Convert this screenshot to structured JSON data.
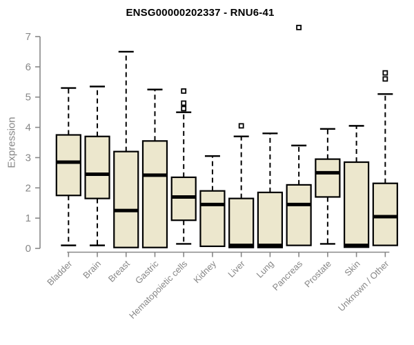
{
  "page": {
    "background": "#ffffff"
  },
  "chart_data": {
    "type": "box",
    "title": "ENSG00000202337 - RNU6-41",
    "ylabel": "Expression",
    "xlabel": "",
    "ylim": [
      0,
      7
    ],
    "yticks": [
      0,
      1,
      2,
      3,
      4,
      5,
      6,
      7
    ],
    "grid": false,
    "legend": "none",
    "colors": {
      "box_fill": "#ECE7CD",
      "box_border": "#000000",
      "median": "#000000",
      "whisker": "#000000",
      "axis": "#878787",
      "tick_label": "#878787",
      "title": "#000000"
    },
    "categories": [
      "Bladder",
      "Brain",
      "Breast",
      "Gastric",
      "Hematopoietic cells",
      "Kidney",
      "Liver",
      "Lung",
      "Pancreas",
      "Prostate",
      "Skin",
      "Unknown / Other"
    ],
    "boxes": [
      {
        "category": "Bladder",
        "whisker_low": 0.1,
        "q1": 1.75,
        "median": 2.85,
        "q3": 3.75,
        "whisker_high": 5.3,
        "outliers": []
      },
      {
        "category": "Brain",
        "whisker_low": 0.1,
        "q1": 1.65,
        "median": 2.45,
        "q3": 3.7,
        "whisker_high": 5.35,
        "outliers": []
      },
      {
        "category": "Breast",
        "whisker_low": 0.03,
        "q1": 0.03,
        "median": 1.25,
        "q3": 3.2,
        "whisker_high": 6.5,
        "outliers": []
      },
      {
        "category": "Gastric",
        "whisker_low": 0.03,
        "q1": 0.03,
        "median": 2.42,
        "q3": 3.55,
        "whisker_high": 5.25,
        "outliers": []
      },
      {
        "category": "Hematopoietic cells",
        "whisker_low": 0.15,
        "q1": 0.93,
        "median": 1.7,
        "q3": 2.35,
        "whisker_high": 4.5,
        "outliers": [
          4.62,
          4.8,
          5.2
        ]
      },
      {
        "category": "Kidney",
        "whisker_low": 0.07,
        "q1": 0.07,
        "median": 1.45,
        "q3": 1.9,
        "whisker_high": 3.05,
        "outliers": []
      },
      {
        "category": "Liver",
        "whisker_low": 0.03,
        "q1": 0.03,
        "median": 0.1,
        "q3": 1.65,
        "whisker_high": 3.7,
        "outliers": [
          4.05
        ]
      },
      {
        "category": "Lung",
        "whisker_low": 0.03,
        "q1": 0.03,
        "median": 0.1,
        "q3": 1.85,
        "whisker_high": 3.8,
        "outliers": []
      },
      {
        "category": "Pancreas",
        "whisker_low": 0.1,
        "q1": 0.1,
        "median": 1.45,
        "q3": 2.1,
        "whisker_high": 3.4,
        "outliers": [
          7.3
        ]
      },
      {
        "category": "Prostate",
        "whisker_low": 0.15,
        "q1": 1.7,
        "median": 2.5,
        "q3": 2.95,
        "whisker_high": 3.95,
        "outliers": []
      },
      {
        "category": "Skin",
        "whisker_low": 0.04,
        "q1": 0.04,
        "median": 0.1,
        "q3": 2.85,
        "whisker_high": 4.05,
        "outliers": []
      },
      {
        "category": "Unknown / Other",
        "whisker_low": 0.1,
        "q1": 0.1,
        "median": 1.05,
        "q3": 2.15,
        "whisker_high": 5.1,
        "outliers": [
          5.6,
          5.8
        ]
      }
    ]
  }
}
